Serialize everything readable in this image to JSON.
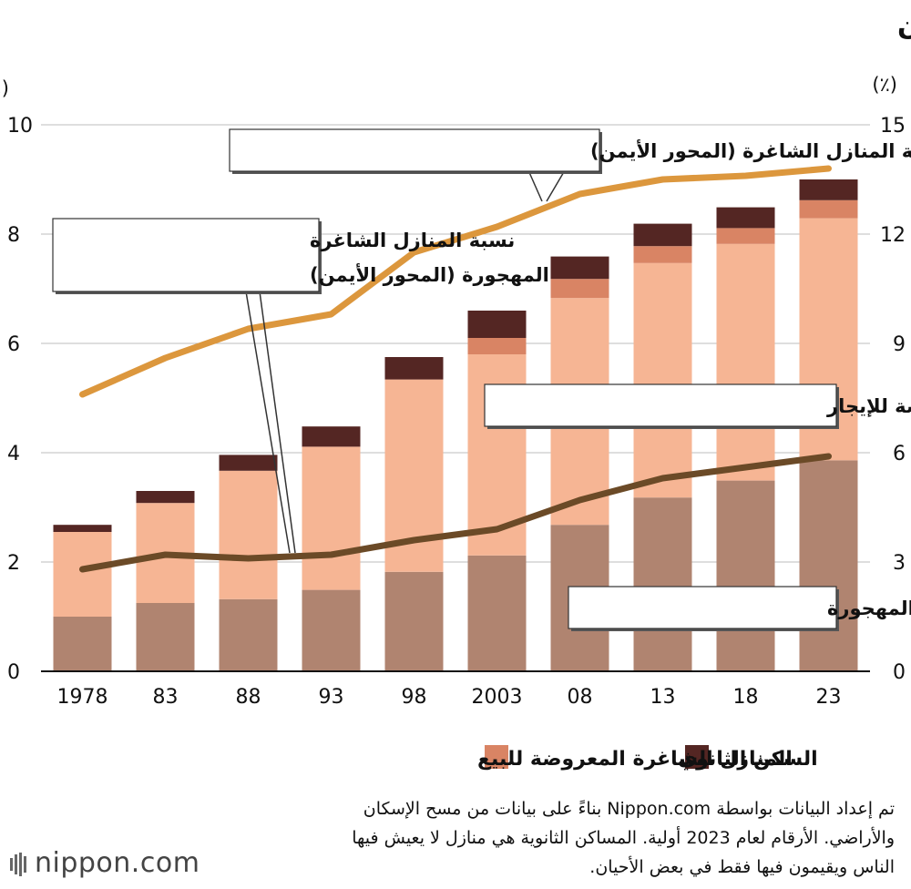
{
  "chart_data": {
    "type": "bar",
    "title": "عدد المنازل المهجورة في اليابان",
    "left_axis": {
      "unit": "(مليون)",
      "ticks": [
        0,
        2,
        4,
        6,
        8,
        10
      ],
      "ylim": [
        0,
        10
      ]
    },
    "right_axis": {
      "unit": "(٪)",
      "ticks": [
        0,
        3,
        6,
        9,
        12,
        15
      ],
      "ylim": [
        0,
        15
      ]
    },
    "categories": [
      "1978",
      "83",
      "88",
      "93",
      "98",
      "2003",
      "08",
      "13",
      "18",
      "23"
    ],
    "stacked_series": [
      {
        "name": "المنازل الشاغرة المهجورة",
        "color": "#b08470",
        "values": [
          1.0,
          1.25,
          1.32,
          1.49,
          1.82,
          2.12,
          2.68,
          3.18,
          3.49,
          3.86
        ]
      },
      {
        "name": "المنازل المهجورة المعروضة للإيجار",
        "color": "#f6b594",
        "values": [
          1.55,
          1.83,
          2.35,
          2.62,
          3.52,
          3.68,
          4.15,
          4.29,
          4.33,
          4.43
        ]
      },
      {
        "name": "المنازل الشاغرة المعروضة للبيع",
        "color": "#d98464",
        "values": [
          0.0,
          0.0,
          0.0,
          0.0,
          0.0,
          0.3,
          0.35,
          0.31,
          0.29,
          0.33
        ]
      },
      {
        "name": "السكن الثانوي",
        "color": "#542623",
        "values": [
          0.13,
          0.22,
          0.29,
          0.37,
          0.41,
          0.5,
          0.41,
          0.41,
          0.38,
          0.38
        ]
      }
    ],
    "lines": [
      {
        "name": "نسبة المنازل الشاغرة (المحور الأيمن)",
        "axis": "right",
        "color": "#dc973d",
        "values": [
          7.6,
          8.6,
          9.4,
          9.8,
          11.5,
          12.2,
          13.1,
          13.5,
          13.6,
          13.8
        ]
      },
      {
        "name": "نسبة المنازل الشاغرة المهجورة (المحور الأيمن)",
        "axis": "right",
        "color": "#6b4a27",
        "values": [
          2.8,
          3.2,
          3.1,
          3.2,
          3.6,
          3.9,
          4.7,
          5.3,
          5.6,
          5.9
        ]
      }
    ],
    "annotations": {
      "vacancy_rate": "نسبة المنازل الشاغرة (المحور الأيمن)",
      "abandoned_rate_line1": "نسبة المنازل الشاغرة",
      "abandoned_rate_line2": "المهجورة (المحور الأيمن)",
      "for_rent": "المنازل المهجورة المعروضة للإيجار",
      "abandoned": "المنازل الشاغرة المهجورة"
    },
    "legend": [
      {
        "label": "السكن الثانوي",
        "color": "#542623"
      },
      {
        "label": "المنازل الشاغرة المعروضة للبيع",
        "color": "#d98464"
      }
    ]
  },
  "footer": {
    "line1": "تم إعداد البيانات بواسطة Nippon.com بناءً على بيانات من مسح الإسكان",
    "line2": "والأراضي. الأرقام لعام 2023 أولية. المساكن الثانوية هي منازل لا يعيش فيها",
    "line3": "الناس ويقيمون فيها فقط في بعض الأحيان."
  },
  "logo": "nippon.com"
}
